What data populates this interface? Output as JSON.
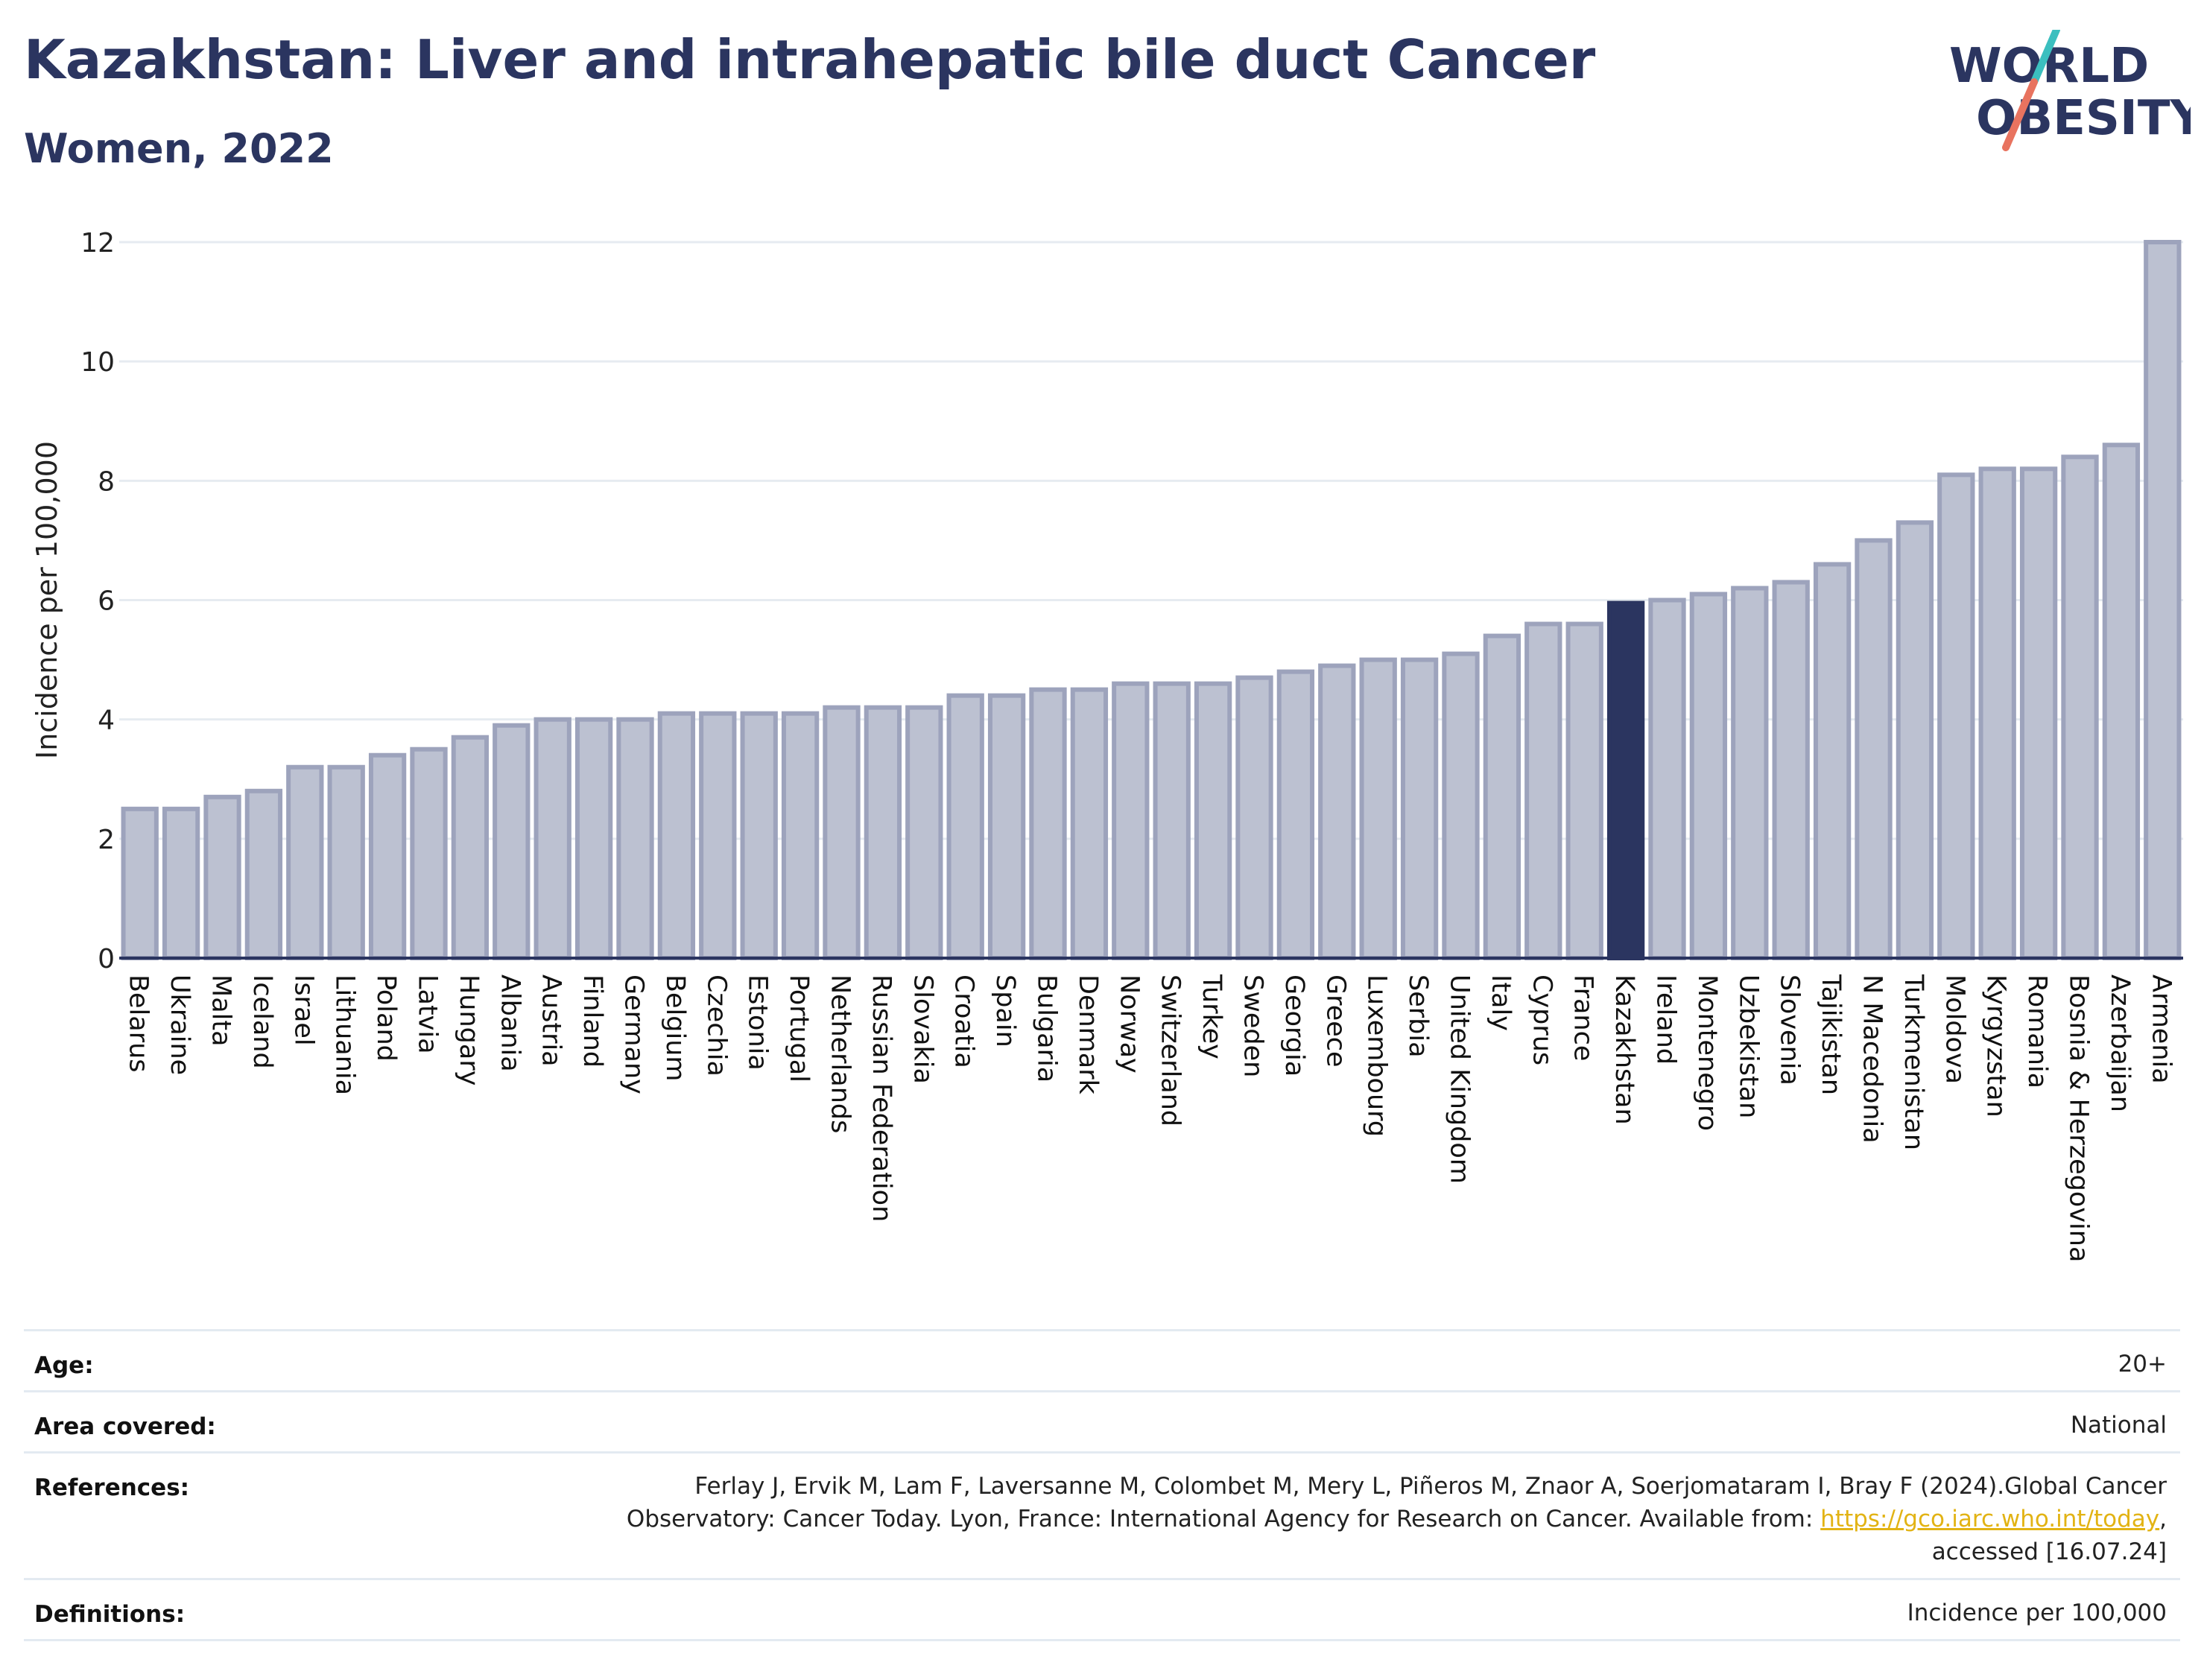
{
  "header": {
    "title": "Kazakhstan: Liver and intrahepatic bile duct Cancer",
    "subtitle": "Women, 2022"
  },
  "logo": {
    "line1": "WORLD",
    "line2": "OBESITY",
    "text_color": "#2b3560",
    "slash_top": "#3bbfbf",
    "slash_bottom": "#e8735f"
  },
  "chart_data": {
    "type": "bar",
    "ylabel": "Incidence per 100,000",
    "ylim": [
      0,
      12
    ],
    "yticks": [
      0,
      2,
      4,
      6,
      8,
      10,
      12
    ],
    "grid": true,
    "highlight": "Kazakhstan",
    "colors": {
      "bar": "#bcc1d1",
      "bar_edge": "#9da3bc",
      "highlight": "#2b3560"
    },
    "categories": [
      "Belarus",
      "Ukraine",
      "Malta",
      "Iceland",
      "Israel",
      "Lithuania",
      "Poland",
      "Latvia",
      "Hungary",
      "Albania",
      "Austria",
      "Finland",
      "Germany",
      "Belgium",
      "Czechia",
      "Estonia",
      "Portugal",
      "Netherlands",
      "Russian Federation",
      "Slovakia",
      "Croatia",
      "Spain",
      "Bulgaria",
      "Denmark",
      "Norway",
      "Switzerland",
      "Turkey",
      "Sweden",
      "Georgia",
      "Greece",
      "Luxembourg",
      "Serbia",
      "United Kingdom",
      "Italy",
      "Cyprus",
      "France",
      "Kazakhstan",
      "Ireland",
      "Montenegro",
      "Uzbekistan",
      "Slovenia",
      "Tajikistan",
      "N Macedonia",
      "Turkmenistan",
      "Moldova",
      "Kyrgyzstan",
      "Romania",
      "Bosnia & Herzegovina",
      "Azerbaijan",
      "Armenia"
    ],
    "values": [
      2.5,
      2.5,
      2.7,
      2.8,
      3.2,
      3.2,
      3.4,
      3.5,
      3.7,
      3.9,
      4.0,
      4.0,
      4.0,
      4.1,
      4.1,
      4.1,
      4.1,
      4.2,
      4.2,
      4.2,
      4.4,
      4.4,
      4.5,
      4.5,
      4.6,
      4.6,
      4.6,
      4.7,
      4.8,
      4.9,
      5.0,
      5.0,
      5.1,
      5.4,
      5.6,
      5.6,
      5.95,
      6.0,
      6.1,
      6.2,
      6.3,
      6.6,
      7.0,
      7.3,
      8.1,
      8.2,
      8.2,
      8.4,
      8.6,
      12.0
    ]
  },
  "meta": {
    "rows": [
      {
        "label": "Age:",
        "value": "20+"
      },
      {
        "label": "Area covered:",
        "value": "National"
      },
      {
        "label": "References:",
        "ref_line1": "Ferlay J, Ervik M, Lam F, Laversanne M, Colombet M, Mery L, Piñeros M, Znaor A, Soerjomataram I, Bray F (2024).Global Cancer",
        "ref_line2_pre": "Observatory: Cancer Today. Lyon, France: International Agency for Research on Cancer. Available from: ",
        "ref_link": "https://gco.iarc.who.int/today",
        "ref_line2_post": ",",
        "ref_line3": "accessed [16.07.24]"
      },
      {
        "label": "Definitions:",
        "value": "Incidence per 100,000"
      }
    ]
  }
}
